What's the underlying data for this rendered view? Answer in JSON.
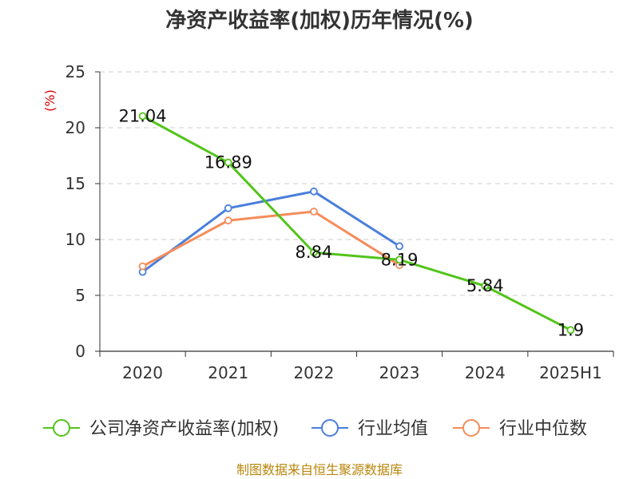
{
  "title": "净资产收益率(加权)历年情况(%)",
  "source": "制图数据来自恒生聚源数据库",
  "chart_data": {
    "type": "line",
    "title": "净资产收益率(加权)历年情况(%)",
    "ylabel": "(%)",
    "xlabel": "",
    "categories": [
      "2020",
      "2021",
      "2022",
      "2023",
      "2024",
      "2025H1"
    ],
    "ylim": [
      0,
      25
    ],
    "yticks": [
      0,
      5,
      10,
      15,
      20,
      25
    ],
    "grid": true,
    "legend_position": "bottom",
    "series": [
      {
        "name": "公司净资产收益率(加权)",
        "color": "#52c41a",
        "values": [
          21.04,
          16.89,
          8.84,
          8.19,
          5.84,
          1.9
        ],
        "labels": [
          "21.04",
          "16.89",
          "8.84",
          "8.19",
          "5.84",
          "1.9"
        ]
      },
      {
        "name": "行业均值",
        "color": "#4a7fdb",
        "values": [
          7.1,
          12.8,
          14.3,
          9.4,
          null,
          null
        ]
      },
      {
        "name": "行业中位数",
        "color": "#f58c5a",
        "values": [
          7.6,
          11.7,
          12.5,
          7.7,
          null,
          null
        ]
      }
    ]
  }
}
